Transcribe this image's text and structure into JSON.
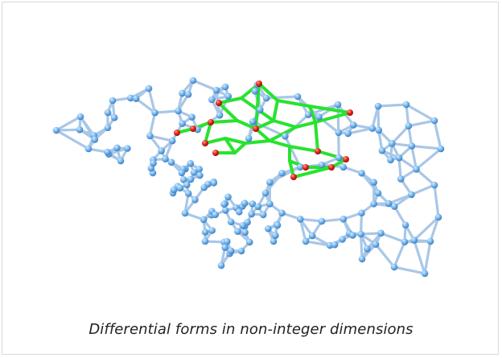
{
  "figure": {
    "caption": "Differential forms in non-integer dimensions",
    "colors": {
      "edge": "#a9c7e8",
      "edge_shadow": "#7ea7d3",
      "node": "#6fb2ec",
      "node_highlight": "#c7e6ff",
      "highlight_edge": "#27e32e",
      "highlight_node": "#e8221c"
    },
    "graph_description": "3D network graph with a highlighted green subgraph and red marked vertices"
  }
}
